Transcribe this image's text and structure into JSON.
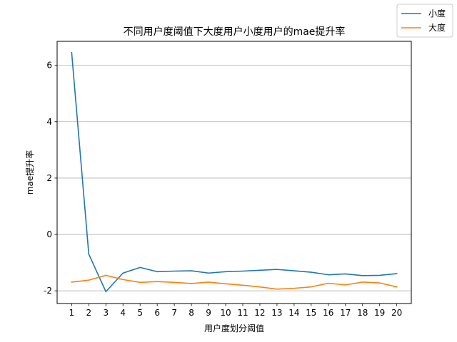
{
  "chart_data": {
    "type": "line",
    "title": "不同用户度阈值下大度用户小度用户的mae提升率",
    "xlabel": "用户度划分阈值",
    "ylabel": "mae提升率",
    "x": [
      1,
      2,
      3,
      4,
      5,
      6,
      7,
      8,
      9,
      10,
      11,
      12,
      13,
      14,
      15,
      16,
      17,
      18,
      19,
      20
    ],
    "xlim": [
      0.15,
      20.85
    ],
    "ylim": [
      -2.45,
      6.85
    ],
    "yticks": [
      -2,
      0,
      2,
      4,
      6
    ],
    "grid": "y",
    "legend_position": "top-right",
    "series": [
      {
        "name": "小度",
        "color": "#1f77b4",
        "values": [
          6.45,
          -0.7,
          -2.03,
          -1.37,
          -1.17,
          -1.32,
          -1.3,
          -1.29,
          -1.37,
          -1.32,
          -1.3,
          -1.27,
          -1.24,
          -1.29,
          -1.34,
          -1.43,
          -1.4,
          -1.46,
          -1.45,
          -1.39
        ]
      },
      {
        "name": "大度",
        "color": "#ff7f0e",
        "values": [
          -1.69,
          -1.62,
          -1.45,
          -1.6,
          -1.7,
          -1.67,
          -1.7,
          -1.74,
          -1.69,
          -1.75,
          -1.8,
          -1.86,
          -1.94,
          -1.91,
          -1.86,
          -1.73,
          -1.79,
          -1.69,
          -1.72,
          -1.86
        ]
      }
    ]
  }
}
